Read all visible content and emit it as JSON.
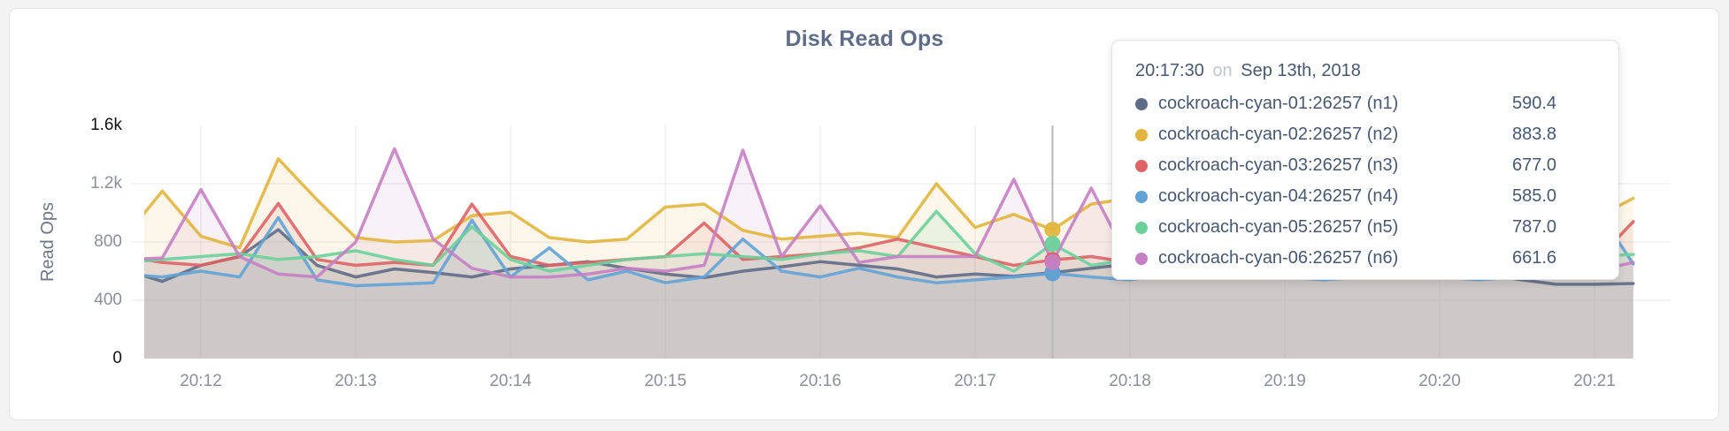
{
  "panel": {
    "title": "Disk Read Ops"
  },
  "tooltip": {
    "time": "20:17:30",
    "on_word": "on",
    "date": "Sep 13th, 2018"
  },
  "chart_data": {
    "type": "area",
    "title": "Disk Read Ops",
    "ylabel": "Read Ops",
    "ylim": [
      0,
      1600
    ],
    "grid": true,
    "legend_position": "tooltip",
    "x_start_time": "20:11:30",
    "x_interval_seconds": 15,
    "x_ticks": [
      {
        "label": "20:12",
        "minute": 0
      },
      {
        "label": "20:13",
        "minute": 1
      },
      {
        "label": "20:14",
        "minute": 2
      },
      {
        "label": "20:15",
        "minute": 3
      },
      {
        "label": "20:16",
        "minute": 4
      },
      {
        "label": "20:17",
        "minute": 5
      },
      {
        "label": "20:18",
        "minute": 6
      },
      {
        "label": "20:19",
        "minute": 7
      },
      {
        "label": "20:20",
        "minute": 8
      },
      {
        "label": "20:21",
        "minute": 9
      }
    ],
    "y_ticks": [
      {
        "label": "0",
        "value": 0,
        "emph": true,
        "gridline": false
      },
      {
        "label": "400",
        "value": 400,
        "emph": false,
        "gridline": true
      },
      {
        "label": "800",
        "value": 800,
        "emph": false,
        "gridline": true
      },
      {
        "label": "1.2k",
        "value": 1200,
        "emph": false,
        "gridline": true
      },
      {
        "label": "1.6k",
        "value": 1600,
        "emph": true,
        "gridline": false
      }
    ],
    "hover": {
      "index": 24,
      "time": "20:17:30",
      "date": "Sep 13th, 2018"
    },
    "series": [
      {
        "id": "n1",
        "name": "cockroach-cyan-01:26257 (n1)",
        "color": "#5f6c87",
        "values": [
          610,
          530,
          640,
          700,
          885,
          640,
          560,
          615,
          590,
          560,
          615,
          640,
          665,
          620,
          580,
          555,
          600,
          630,
          665,
          640,
          615,
          560,
          580,
          565,
          590.4,
          620,
          650,
          605,
          575,
          590,
          610,
          580,
          560,
          600,
          620,
          590,
          545,
          510,
          510,
          515
        ]
      },
      {
        "id": "n2",
        "name": "cockroach-cyan-02:26257 (n2)",
        "color": "#e2b53e",
        "values": [
          820,
          1150,
          840,
          760,
          1371,
          1090,
          830,
          800,
          810,
          980,
          1005,
          830,
          800,
          820,
          1040,
          1060,
          880,
          820,
          840,
          860,
          830,
          1200,
          900,
          990,
          883.8,
          1060,
          1100,
          900,
          850,
          900,
          950,
          880,
          840,
          900,
          860,
          830,
          900,
          860,
          960,
          1100
        ]
      },
      {
        "id": "n3",
        "name": "cockroach-cyan-03:26257 (n3)",
        "color": "#de6365",
        "values": [
          700,
          660,
          640,
          700,
          1064,
          680,
          640,
          660,
          640,
          1060,
          700,
          640,
          660,
          680,
          700,
          930,
          680,
          700,
          720,
          760,
          820,
          760,
          700,
          640,
          677,
          700,
          660,
          640,
          680,
          660,
          640,
          700,
          680,
          660,
          640,
          680,
          660,
          600,
          660,
          940
        ]
      },
      {
        "id": "n4",
        "name": "cockroach-cyan-04:26257 (n4)",
        "color": "#62a3d6",
        "values": [
          580,
          560,
          600,
          560,
          968,
          540,
          500,
          510,
          520,
          950,
          560,
          760,
          540,
          600,
          520,
          560,
          820,
          600,
          560,
          620,
          560,
          520,
          540,
          560,
          585,
          560,
          540,
          580,
          560,
          600,
          560,
          540,
          560,
          580,
          560,
          540,
          560,
          560,
          1050,
          650
        ]
      },
      {
        "id": "n5",
        "name": "cockroach-cyan-05:26257 (n5)",
        "color": "#6bd09a",
        "values": [
          660,
          680,
          700,
          720,
          680,
          700,
          740,
          680,
          640,
          905,
          680,
          600,
          640,
          680,
          700,
          720,
          700,
          680,
          720,
          740,
          700,
          1010,
          720,
          600,
          787,
          640,
          680,
          700,
          720,
          700,
          680,
          700,
          720,
          700,
          680,
          700,
          720,
          700,
          700,
          715
        ]
      },
      {
        "id": "n6",
        "name": "cockroach-cyan-06:26257 (n6)",
        "color": "#c57fc3",
        "values": [
          680,
          690,
          1160,
          700,
          580,
          560,
          800,
          1440,
          820,
          620,
          560,
          560,
          580,
          620,
          600,
          640,
          1430,
          700,
          1048,
          660,
          700,
          700,
          700,
          1230,
          661.6,
          1170,
          660,
          600,
          700,
          640,
          680,
          620,
          700,
          660,
          620,
          680,
          1160,
          640,
          600,
          660
        ]
      }
    ]
  }
}
